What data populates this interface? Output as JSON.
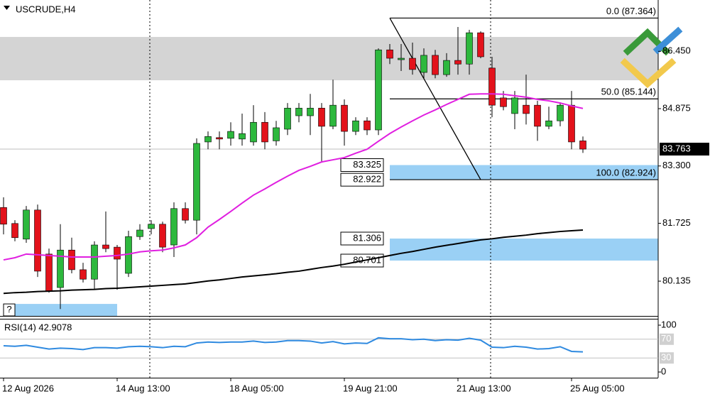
{
  "chart_data": [
    {
      "type": "candlestick",
      "title": "USCRUDE,H4",
      "categories": [
        "12 Aug 2026",
        null,
        null,
        null,
        null,
        null,
        null,
        null,
        null,
        null,
        "14 Aug 13:00",
        null,
        null,
        null,
        null,
        null,
        null,
        null,
        null,
        null,
        "18 Aug 05:00",
        null,
        null,
        null,
        null,
        null,
        null,
        null,
        null,
        null,
        "19 Aug 21:00",
        null,
        null,
        null,
        null,
        null,
        null,
        null,
        null,
        null,
        "21 Aug 13:00",
        null,
        null,
        null,
        null,
        null,
        null,
        null,
        null,
        null,
        "25 Aug 05:00",
        null
      ],
      "open": [
        82.16,
        81.72,
        81.29,
        82.09,
        80.88,
        79.96,
        80.99,
        80.45,
        80.19,
        81.13,
        81.07,
        80.35,
        81.36,
        81.58,
        81.7,
        81.13,
        82.13,
        81.81,
        83.96,
        84.08,
        84.06,
        84.04,
        83.96,
        84.5,
        83.99,
        84.31,
        84.68,
        84.68,
        84.89,
        84.39,
        84.97,
        84.25,
        84.54,
        84.29,
        86.49,
        86.22,
        86.26,
        85.87,
        86.34,
        85.81,
        86.2,
        86.1,
        86.96,
        85.99,
        85.17,
        84.74,
        84.97,
        84.97,
        84.39,
        84.54,
        84.97,
        83.99
      ],
      "high": [
        82.44,
        81.81,
        82.2,
        82.24,
        81.03,
        81.7,
        81.33,
        80.64,
        81.23,
        82.05,
        81.13,
        81.52,
        81.7,
        81.81,
        81.77,
        82.3,
        82.3,
        84.06,
        84.25,
        84.25,
        84.5,
        84.74,
        84.97,
        84.78,
        84.54,
        85.03,
        85.03,
        85.28,
        85.03,
        85.67,
        85.13,
        84.64,
        84.64,
        86.53,
        86.65,
        86.65,
        86.69,
        86.53,
        86.49,
        86.4,
        87.12,
        87.04,
        87.0,
        86.3,
        85.36,
        85.36,
        85.81,
        85.09,
        84.93,
        85.05,
        85.36,
        84.11
      ],
      "low": [
        81.42,
        81.23,
        81.19,
        80.25,
        79.82,
        79.37,
        80.35,
        80.1,
        79.9,
        80.93,
        79.9,
        80.25,
        81.27,
        81.42,
        80.93,
        80.8,
        81.72,
        81.42,
        83.76,
        83.76,
        83.86,
        83.86,
        83.86,
        83.76,
        83.86,
        84.15,
        84.5,
        84.15,
        83.41,
        84.31,
        83.86,
        84.15,
        84.15,
        84.15,
        86.1,
        85.91,
        85.81,
        85.71,
        85.71,
        85.75,
        85.81,
        85.81,
        86.26,
        84.64,
        84.83,
        84.31,
        84.44,
        83.99,
        84.31,
        84.39,
        83.76,
        83.66
      ],
      "close": [
        81.7,
        81.33,
        82.09,
        80.41,
        79.86,
        80.99,
        80.45,
        80.19,
        81.13,
        81.03,
        80.74,
        81.36,
        81.54,
        81.7,
        81.07,
        82.13,
        81.81,
        83.92,
        84.11,
        84.04,
        84.25,
        84.19,
        84.5,
        83.96,
        84.35,
        84.89,
        84.89,
        84.89,
        84.39,
        84.97,
        84.25,
        84.54,
        84.29,
        86.49,
        86.26,
        86.26,
        85.95,
        86.34,
        85.81,
        86.2,
        86.1,
        86.96,
        86.3,
        84.97,
        84.93,
        85.17,
        84.74,
        84.39,
        84.54,
        84.97,
        83.96,
        83.763
      ],
      "up_color": "#2db83d",
      "down_color": "#e3121b",
      "overlays": [
        {
          "color": "#e01fe0",
          "values": [
            80.72,
            80.78,
            80.88,
            80.86,
            80.84,
            80.82,
            80.8,
            80.8,
            80.8,
            80.82,
            80.84,
            80.88,
            80.94,
            80.97,
            80.99,
            81.05,
            81.13,
            81.33,
            81.62,
            81.83,
            82.05,
            82.28,
            82.5,
            82.67,
            82.85,
            83.02,
            83.18,
            83.29,
            83.41,
            83.47,
            83.53,
            83.65,
            83.76,
            83.98,
            84.19,
            84.37,
            84.54,
            84.7,
            84.84,
            84.99,
            85.13,
            85.27,
            85.28,
            85.28,
            85.27,
            85.23,
            85.19,
            85.13,
            85.09,
            85.03,
            84.95,
            84.88
          ]
        },
        {
          "color": "#000000",
          "values": [
            79.8,
            79.82,
            79.83,
            79.85,
            79.86,
            79.87,
            79.89,
            79.9,
            79.91,
            79.93,
            79.94,
            79.96,
            79.98,
            80.0,
            80.02,
            80.04,
            80.06,
            80.1,
            80.14,
            80.17,
            80.21,
            80.25,
            80.28,
            80.31,
            80.34,
            80.38,
            80.41,
            80.46,
            80.51,
            80.55,
            80.6,
            80.66,
            80.72,
            80.78,
            80.84,
            80.9,
            80.95,
            81.01,
            81.07,
            81.12,
            81.17,
            81.22,
            81.27,
            81.3,
            81.34,
            81.37,
            81.4,
            81.44,
            81.47,
            81.5,
            81.52,
            81.54
          ]
        }
      ],
      "ylim": [
        79.18,
        87.86
      ],
      "yticks": [
        {
          "value": 86.45,
          "label": "86.450"
        },
        84.875,
        {
          "value": 83.3,
          "label": "83.300"
        },
        81.725,
        80.135
      ],
      "last_price": 83.763,
      "fibonacci": {
        "start_index": 34,
        "end_index": 42,
        "levels": [
          {
            "value": 87.364,
            "label": "0.0 (87.364)"
          },
          {
            "value": 85.144,
            "label": "50.0 (85.144)"
          },
          {
            "value": 82.924,
            "label": "100.0 (82.924)"
          }
        ]
      },
      "zones": [
        {
          "from": 86.845,
          "to": 85.655,
          "color": "#d4d4d4"
        },
        {
          "from": 83.325,
          "to": 82.922,
          "color": "#9ad0f5",
          "start_index": 34,
          "show_bounds": true
        },
        {
          "from": 81.306,
          "to": 80.701,
          "color": "#9ad0f5",
          "start_index": 34,
          "show_bounds": true
        },
        {
          "from": 79.51,
          "to": 79.18,
          "color": "#9ad0f5",
          "start_index": 1,
          "end_index": 10,
          "label": "?"
        }
      ]
    },
    {
      "type": "line",
      "title": "RSI(14) 42.9078",
      "color": "#2f8ae0",
      "values": [
        56,
        55,
        57,
        53,
        49,
        51,
        50,
        48,
        52,
        52,
        51,
        54,
        55,
        54,
        52,
        55,
        54,
        62,
        64,
        63,
        64,
        64,
        66,
        63,
        64,
        67,
        67,
        66,
        62,
        65,
        60,
        62,
        61,
        73,
        71,
        71,
        69,
        70,
        67,
        69,
        68,
        72,
        68,
        53,
        52,
        55,
        53,
        49,
        50,
        54,
        44,
        42.9078
      ],
      "ylim": [
        0,
        100
      ],
      "yticks": [
        100,
        70,
        30,
        0
      ]
    }
  ]
}
